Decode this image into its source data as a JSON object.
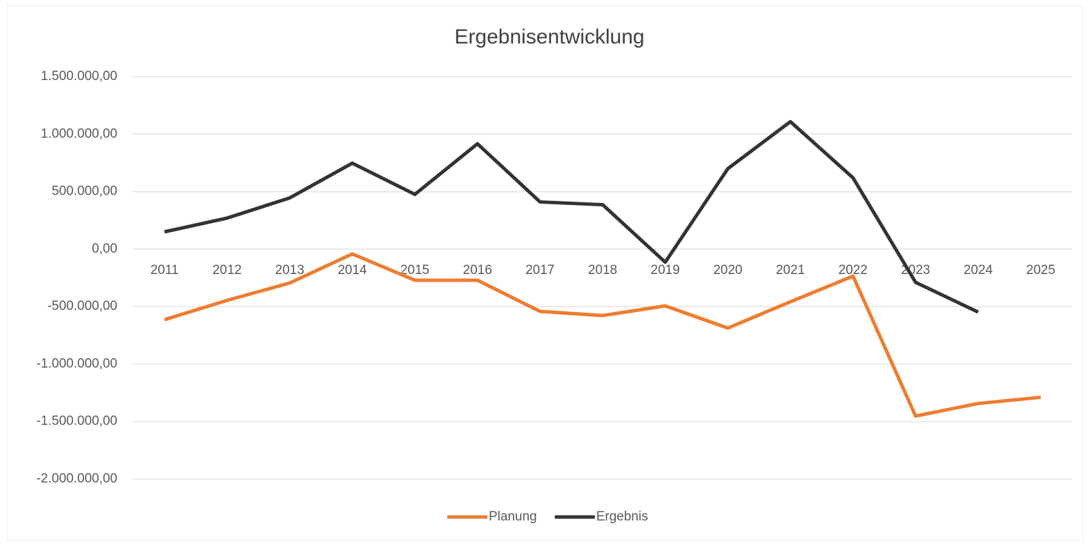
{
  "chart_data": {
    "type": "line",
    "title": "Ergebnisentwicklung",
    "categories": [
      "2011",
      "2012",
      "2013",
      "2014",
      "2015",
      "2016",
      "2017",
      "2018",
      "2019",
      "2020",
      "2021",
      "2022",
      "2023",
      "2024",
      "2025"
    ],
    "series": [
      {
        "name": "Planung",
        "color": "#ed7d31",
        "values": [
          -614000,
          -446000,
          -295000,
          -42000,
          -271000,
          -271000,
          -542000,
          -578000,
          -494000,
          -687000,
          -458000,
          -235000,
          -1452000,
          -1343000,
          -1289000
        ]
      },
      {
        "name": "Ergebnis",
        "color": "#333333",
        "values": [
          150000,
          270000,
          445000,
          747000,
          476000,
          916000,
          410000,
          386000,
          -114000,
          699000,
          1108000,
          620000,
          -289000,
          -548000,
          null
        ]
      }
    ],
    "ylim": [
      -2000000,
      1500000
    ],
    "yticks": [
      {
        "value": -2000000,
        "label": "-2.000.000,00"
      },
      {
        "value": -1500000,
        "label": "-1.500.000,00"
      },
      {
        "value": -1000000,
        "label": "-1.000.000,00"
      },
      {
        "value": -500000,
        "label": "-500.000,00"
      },
      {
        "value": 0,
        "label": "0,00"
      },
      {
        "value": 500000,
        "label": "500.000,00"
      },
      {
        "value": 1000000,
        "label": "1.000.000,00"
      },
      {
        "value": 1500000,
        "label": "1.500.000,00"
      }
    ],
    "grid": true,
    "legend": "bottom"
  }
}
